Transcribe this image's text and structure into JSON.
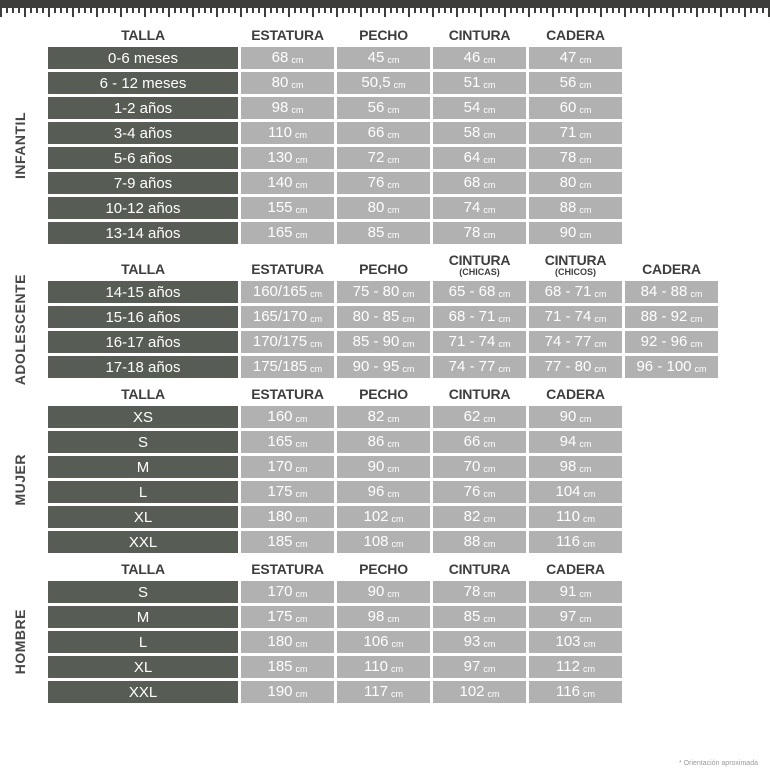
{
  "unit": "cm",
  "footnote": "* Orientación aproximada",
  "colors": {
    "tape": "#3d3d3b",
    "dark_cell": "#575d54",
    "light_cell": "#b1b1b1",
    "header_text": "#3e3e3e"
  },
  "sections": [
    {
      "id": "infantil",
      "label": "INFANTIL",
      "headers": [
        {
          "label": "TALLA"
        },
        {
          "label": "ESTATURA"
        },
        {
          "label": "PECHO"
        },
        {
          "label": "CINTURA"
        },
        {
          "label": "CADERA"
        }
      ],
      "rows": [
        {
          "talla": "0-6 meses",
          "values": [
            "68",
            "45",
            "46",
            "47"
          ]
        },
        {
          "talla": "6 - 12 meses",
          "values": [
            "80",
            "50,5",
            "51",
            "56"
          ]
        },
        {
          "talla": "1-2 años",
          "values": [
            "98",
            "56",
            "54",
            "60"
          ]
        },
        {
          "talla": "3-4 años",
          "values": [
            "110",
            "66",
            "58",
            "71"
          ]
        },
        {
          "talla": "5-6 años",
          "values": [
            "130",
            "72",
            "64",
            "78"
          ]
        },
        {
          "talla": "7-9 años",
          "values": [
            "140",
            "76",
            "68",
            "80"
          ]
        },
        {
          "talla": "10-12 años",
          "values": [
            "155",
            "80",
            "74",
            "88"
          ]
        },
        {
          "talla": "13-14 años",
          "values": [
            "165",
            "85",
            "78",
            "90"
          ]
        }
      ]
    },
    {
      "id": "adolescente",
      "label": "ADOLESCENTE",
      "headers": [
        {
          "label": "TALLA"
        },
        {
          "label": "ESTATURA"
        },
        {
          "label": "PECHO"
        },
        {
          "label": "CINTURA",
          "sub": "(CHICAS)"
        },
        {
          "label": "CINTURA",
          "sub": "(CHICOS)"
        },
        {
          "label": "CADERA"
        }
      ],
      "rows": [
        {
          "talla": "14-15 años",
          "values": [
            "160/165",
            "75 - 80",
            "65 - 68",
            "68 - 71",
            "84 - 88"
          ]
        },
        {
          "talla": "15-16 años",
          "values": [
            "165/170",
            "80 - 85",
            "68 - 71",
            "71 - 74",
            "88 - 92"
          ]
        },
        {
          "talla": "16-17 años",
          "values": [
            "170/175",
            "85 - 90",
            "71 - 74",
            "74 - 77",
            "92 - 96"
          ]
        },
        {
          "talla": "17-18 años",
          "values": [
            "175/185",
            "90 - 95",
            "74 - 77",
            "77 - 80",
            "96 - 100"
          ]
        }
      ]
    },
    {
      "id": "mujer",
      "label": "MUJER",
      "headers": [
        {
          "label": "TALLA"
        },
        {
          "label": "ESTATURA"
        },
        {
          "label": "PECHO"
        },
        {
          "label": "CINTURA"
        },
        {
          "label": "CADERA"
        }
      ],
      "rows": [
        {
          "talla": "XS",
          "values": [
            "160",
            "82",
            "62",
            "90"
          ]
        },
        {
          "talla": "S",
          "values": [
            "165",
            "86",
            "66",
            "94"
          ]
        },
        {
          "talla": "M",
          "values": [
            "170",
            "90",
            "70",
            "98"
          ]
        },
        {
          "talla": "L",
          "values": [
            "175",
            "96",
            "76",
            "104"
          ]
        },
        {
          "talla": "XL",
          "values": [
            "180",
            "102",
            "82",
            "110"
          ]
        },
        {
          "talla": "XXL",
          "values": [
            "185",
            "108",
            "88",
            "116"
          ]
        }
      ]
    },
    {
      "id": "hombre",
      "label": "HOMBRE",
      "headers": [
        {
          "label": "TALLA"
        },
        {
          "label": "ESTATURA"
        },
        {
          "label": "PECHO"
        },
        {
          "label": "CINTURA"
        },
        {
          "label": "CADERA"
        }
      ],
      "rows": [
        {
          "talla": "S",
          "values": [
            "170",
            "90",
            "78",
            "91"
          ]
        },
        {
          "talla": "M",
          "values": [
            "175",
            "98",
            "85",
            "97"
          ]
        },
        {
          "talla": "L",
          "values": [
            "180",
            "106",
            "93",
            "103"
          ]
        },
        {
          "talla": "XL",
          "values": [
            "185",
            "110",
            "97",
            "112"
          ]
        },
        {
          "talla": "XXL",
          "values": [
            "190",
            "117",
            "102",
            "116"
          ]
        }
      ]
    }
  ]
}
